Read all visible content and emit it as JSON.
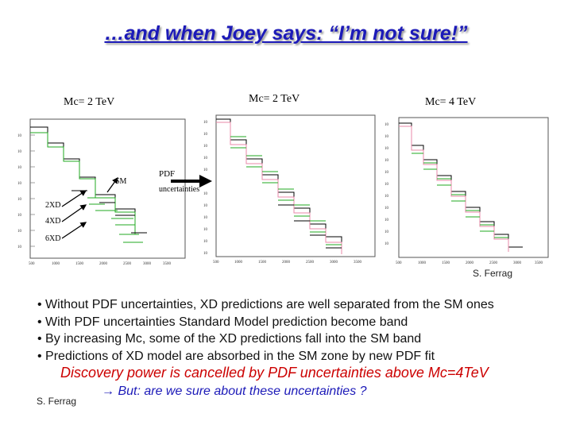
{
  "slide": {
    "title": "…and when Joey says: “I’m not sure!”",
    "plots": [
      {
        "title": "Mc= 2 TeV"
      },
      {
        "title": "Mc= 2 TeV"
      },
      {
        "title": "Mc= 4 TeV"
      }
    ],
    "annotations": {
      "sm": "SM",
      "xd2": "2XD",
      "xd4": "4XD",
      "xd6": "6XD",
      "pdf": "PDF",
      "uncertainties": "uncertainties"
    },
    "credit_top": "S. Ferrag",
    "bullets": [
      "• Without PDF uncertainties, XD predictions are well separated from the SM ones",
      "• With PDF uncertainties Standard Model prediction become band",
      "• By increasing Mc, some of the XD predictions fall into the SM band",
      "• Predictions of XD model are absorbed in the SM zone by new PDF fit"
    ],
    "conclusion": "Discovery power is cancelled by PDF uncertainties above Mc=4TeV",
    "question_arrow": "→",
    "question": "But: are we sure about these uncertainties ?",
    "credit_bottom": "S. Ferrag",
    "colors": {
      "title": "#1c1ab8",
      "conclusion": "#cc0000",
      "question": "#1c1ab8",
      "sm_line": "#000000",
      "xd_line": "#22aa22"
    }
  }
}
